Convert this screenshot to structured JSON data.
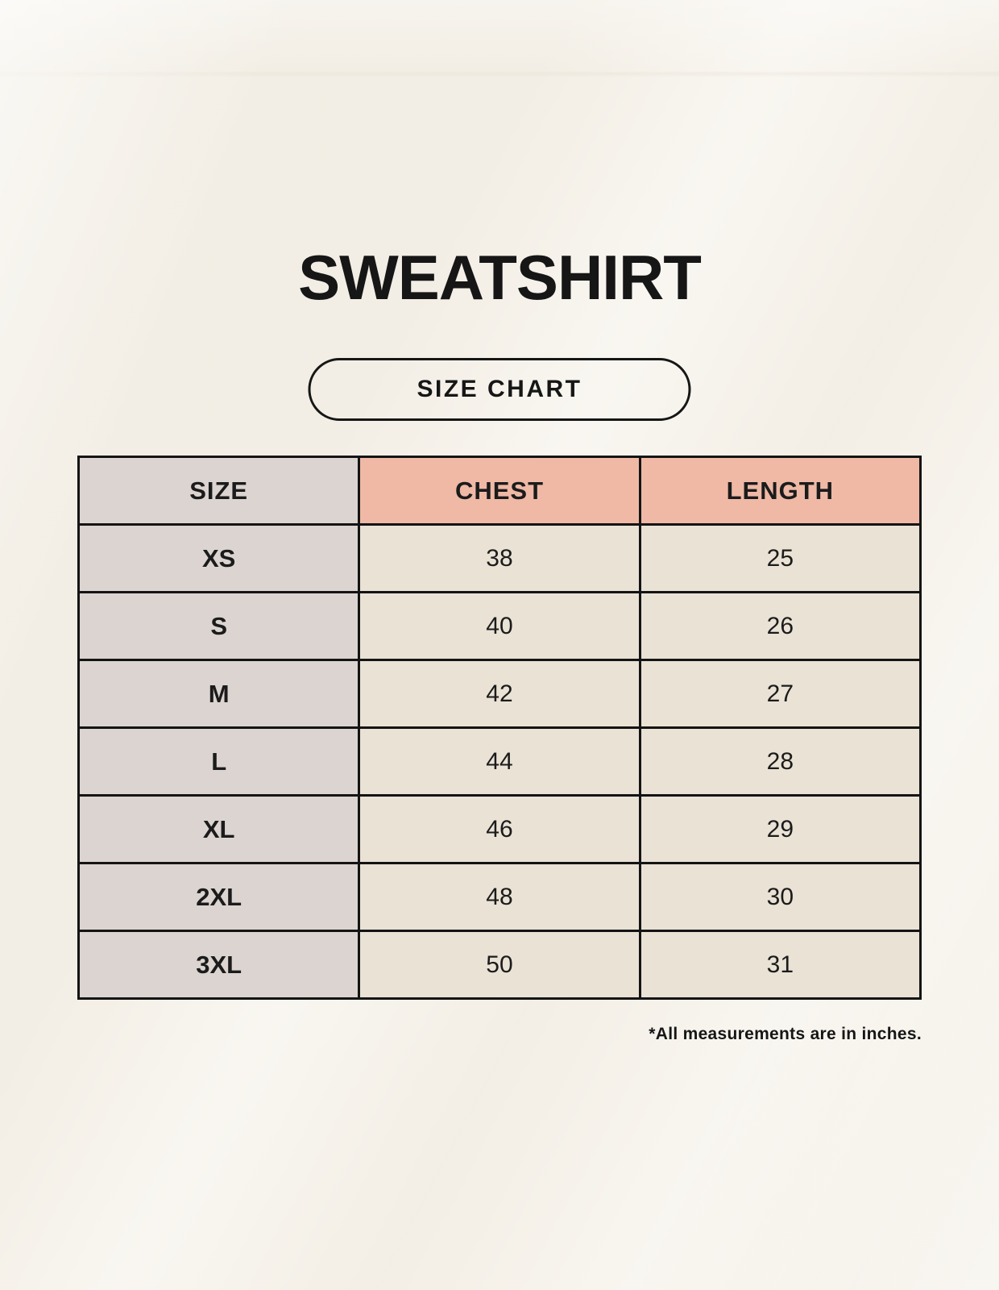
{
  "page": {
    "title": "SWEATSHIRT",
    "badge": "SIZE CHART",
    "footnote": "*All measurements are in inches."
  },
  "colors": {
    "background": "#f6f2ea",
    "header_accent": "#efb9a6",
    "size_column": "#dbd4d0",
    "data_cell": "#e9e2d5",
    "border": "#141414",
    "text": "#161616"
  },
  "chart_data": {
    "type": "table",
    "title": "SWEATSHIRT",
    "subtitle": "SIZE CHART",
    "columns": [
      "SIZE",
      "CHEST",
      "LENGTH"
    ],
    "rows": [
      [
        "XS",
        "38",
        "25"
      ],
      [
        "S",
        "40",
        "26"
      ],
      [
        "M",
        "42",
        "27"
      ],
      [
        "L",
        "44",
        "28"
      ],
      [
        "XL",
        "46",
        "29"
      ],
      [
        "2XL",
        "48",
        "30"
      ],
      [
        "3XL",
        "50",
        "31"
      ]
    ],
    "units": "inches",
    "footnote": "*All measurements are in inches."
  }
}
